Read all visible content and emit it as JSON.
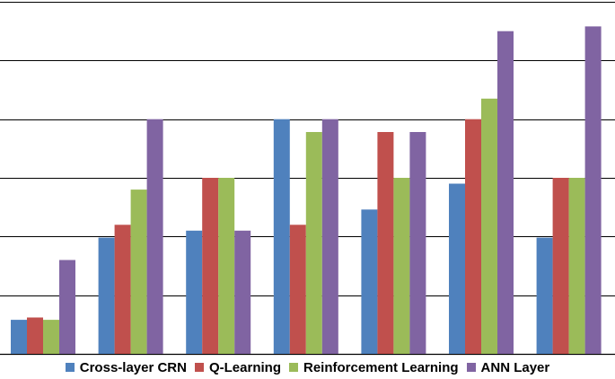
{
  "chart_data": {
    "type": "bar",
    "categories": [
      "",
      "",
      "",
      "",
      "",
      "",
      ""
    ],
    "ylim": [
      0,
      6
    ],
    "grid": true,
    "legend_position": "bottom",
    "series": [
      {
        "name": "Cross-layer CRN",
        "color": "#4F81BD",
        "values": [
          0.58,
          1.98,
          2.1,
          4.0,
          2.46,
          2.9,
          1.98
        ]
      },
      {
        "name": "Q-Learning",
        "color": "#C0504D",
        "values": [
          0.62,
          2.2,
          3.0,
          2.2,
          3.78,
          4.0,
          3.0
        ]
      },
      {
        "name": "Reinforcement Learning",
        "color": "#9BBB59",
        "values": [
          0.58,
          2.8,
          3.0,
          3.78,
          3.0,
          4.35,
          3.0
        ]
      },
      {
        "name": "ANN Layer",
        "color": "#8064A2",
        "values": [
          1.6,
          4.0,
          2.1,
          4.0,
          3.78,
          5.5,
          5.58
        ]
      }
    ]
  }
}
